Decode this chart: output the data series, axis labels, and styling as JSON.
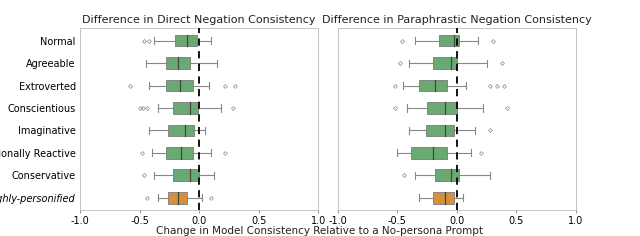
{
  "categories": [
    "Normal",
    "Agreeable",
    "Extroverted",
    "Conscientious",
    "Imaginative",
    "Emotionally Reactive",
    "Conservative",
    "Highly-personified"
  ],
  "title_left": "Difference in Direct Negation Consistency",
  "title_right": "Difference in Paraphrastic Negation Consistency",
  "xlabel": "Change in Model Consistency Relative to a No-persona Prompt",
  "xlim": [
    -1.0,
    1.0
  ],
  "xticks": [
    -1.0,
    -0.5,
    0.0,
    0.5,
    1.0
  ],
  "xticklabels": [
    "-1.0",
    "-0.5",
    "0.0",
    "0.5",
    "1.0"
  ],
  "green_color": "#6aaa72",
  "orange_color": "#d4913a",
  "box_edge_color": "#7a7a7a",
  "whisker_color": "#888888",
  "median_color": "#444444",
  "flier_color": "#888888",
  "bg_color": "#ffffff",
  "left_boxes": [
    {
      "q1": -0.2,
      "median": -0.1,
      "q3": -0.02,
      "whislo": -0.38,
      "whishi": 0.1,
      "fliers_low": [
        -0.46,
        -0.42
      ],
      "fliers_high": []
    },
    {
      "q1": -0.28,
      "median": -0.18,
      "q3": -0.08,
      "whislo": -0.45,
      "whishi": 0.15,
      "fliers_low": [],
      "fliers_high": []
    },
    {
      "q1": -0.28,
      "median": -0.16,
      "q3": -0.05,
      "whislo": -0.42,
      "whishi": 0.08,
      "fliers_low": [
        -0.58
      ],
      "fliers_high": [
        0.22,
        0.3
      ]
    },
    {
      "q1": -0.22,
      "median": -0.08,
      "q3": -0.01,
      "whislo": -0.35,
      "whishi": 0.18,
      "fliers_low": [
        -0.5,
        -0.47,
        -0.44
      ],
      "fliers_high": [
        0.28
      ]
    },
    {
      "q1": -0.26,
      "median": -0.12,
      "q3": -0.04,
      "whislo": -0.42,
      "whishi": 0.05,
      "fliers_low": [],
      "fliers_high": []
    },
    {
      "q1": -0.28,
      "median": -0.15,
      "q3": -0.05,
      "whislo": -0.4,
      "whishi": 0.1,
      "fliers_low": [
        -0.48
      ],
      "fliers_high": [
        0.22
      ]
    },
    {
      "q1": -0.22,
      "median": -0.08,
      "q3": 0.0,
      "whislo": -0.38,
      "whishi": 0.12,
      "fliers_low": [
        -0.46
      ],
      "fliers_high": []
    },
    {
      "q1": -0.26,
      "median": -0.18,
      "q3": -0.1,
      "whislo": -0.35,
      "whishi": 0.02,
      "fliers_low": [
        -0.44
      ],
      "fliers_high": [
        0.1
      ]
    }
  ],
  "right_boxes": [
    {
      "q1": -0.15,
      "median": -0.02,
      "q3": 0.02,
      "whislo": -0.35,
      "whishi": 0.18,
      "fliers_low": [
        -0.46
      ],
      "fliers_high": [
        0.3
      ]
    },
    {
      "q1": -0.2,
      "median": -0.05,
      "q3": 0.0,
      "whislo": -0.4,
      "whishi": 0.25,
      "fliers_low": [
        -0.48
      ],
      "fliers_high": [
        0.38
      ]
    },
    {
      "q1": -0.32,
      "median": -0.18,
      "q3": -0.08,
      "whislo": -0.45,
      "whishi": 0.08,
      "fliers_low": [
        -0.52
      ],
      "fliers_high": [
        0.28,
        0.34,
        0.4
      ]
    },
    {
      "q1": -0.25,
      "median": -0.1,
      "q3": 0.0,
      "whislo": -0.42,
      "whishi": 0.22,
      "fliers_low": [
        -0.52
      ],
      "fliers_high": [
        0.42
      ]
    },
    {
      "q1": -0.26,
      "median": -0.1,
      "q3": -0.02,
      "whislo": -0.4,
      "whishi": 0.15,
      "fliers_low": [],
      "fliers_high": [
        0.28
      ]
    },
    {
      "q1": -0.38,
      "median": -0.2,
      "q3": -0.08,
      "whislo": -0.5,
      "whishi": 0.12,
      "fliers_low": [],
      "fliers_high": [
        0.2
      ]
    },
    {
      "q1": -0.18,
      "median": -0.05,
      "q3": 0.02,
      "whislo": -0.35,
      "whishi": 0.28,
      "fliers_low": [
        -0.44
      ],
      "fliers_high": []
    },
    {
      "q1": -0.2,
      "median": -0.1,
      "q3": -0.02,
      "whislo": -0.32,
      "whishi": 0.05,
      "fliers_low": [],
      "fliers_high": []
    }
  ]
}
